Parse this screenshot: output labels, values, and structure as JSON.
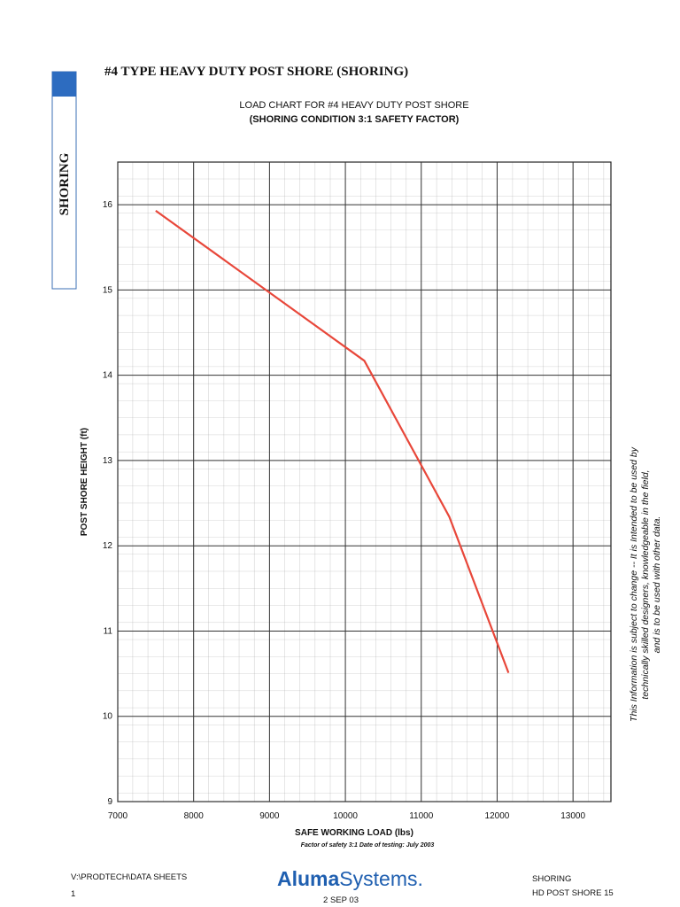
{
  "header": {
    "title": "#4 TYPE HEAVY DUTY POST SHORE (SHORING)",
    "tab": "SHORING"
  },
  "chart_data": {
    "type": "line",
    "title": [
      "LOAD CHART FOR #4 HEAVY DUTY POST SHORE",
      "(SHORING CONDITION 3:1 SAFETY FACTOR)"
    ],
    "xlabel": "SAFE WORKING LOAD (lbs)",
    "note": "Factor of safety 3:1 Date of testing: July 2003",
    "ylabel": "POST SHORE HEIGHT (ft)",
    "x": [
      7500,
      10250,
      11370,
      12150
    ],
    "series": [
      {
        "name": "#4 Heavy Duty Post Shore",
        "color": "#e8473a",
        "values": [
          15.93,
          14.17,
          12.34,
          10.51
        ]
      }
    ],
    "xlim": [
      7000,
      13500
    ],
    "xticks": [
      7000,
      8000,
      9000,
      10000,
      11000,
      12000,
      13000
    ],
    "ylim": [
      9,
      16.5
    ],
    "yticks": [
      9,
      10,
      11,
      12,
      13,
      14,
      15,
      16
    ],
    "grid": true
  },
  "side_note": [
    "This Information is subject to change -- It is Intended to be used by",
    "technically skilled designers, knowledgeable in the field,",
    "and is to be used with other data."
  ],
  "footer": {
    "path": "V:\\PRODTECH\\DATA SHEETS",
    "page": "1",
    "logo_a": "Aluma",
    "logo_b": "Systems.",
    "date": "2 SEP 03",
    "section": "SHORING",
    "sheet": "HD POST SHORE 15"
  }
}
